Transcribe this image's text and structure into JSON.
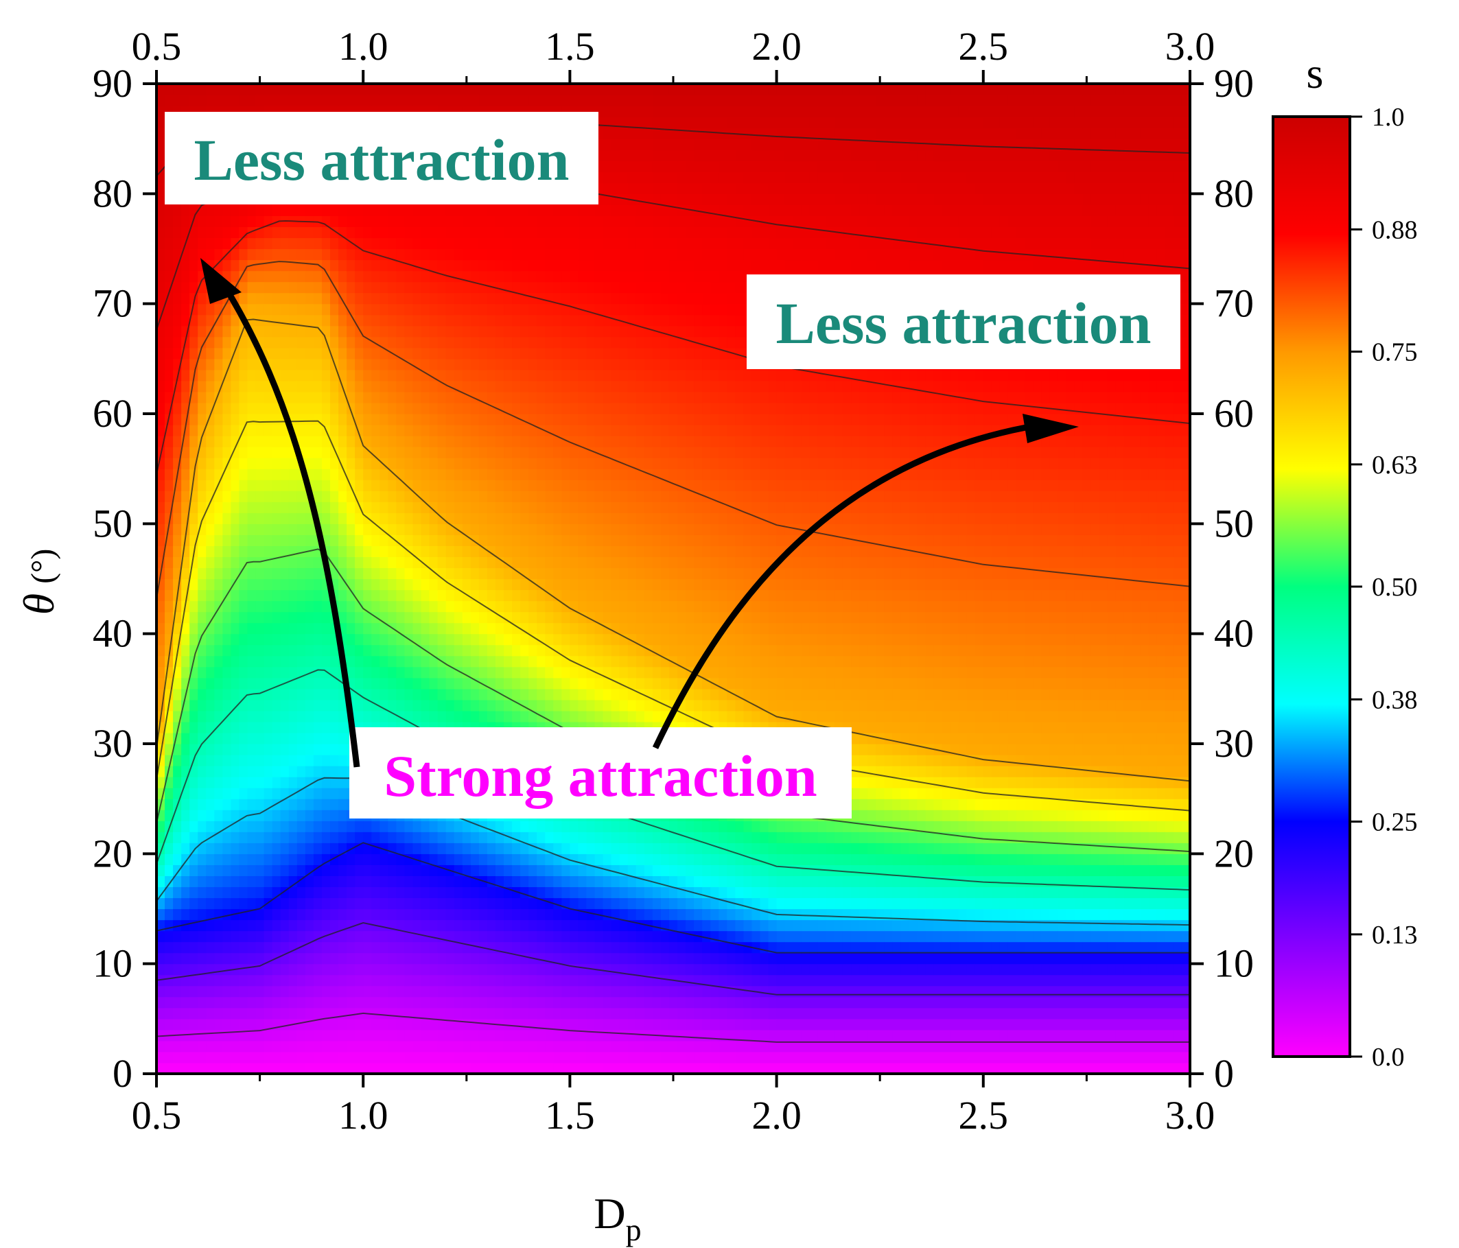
{
  "chart_data": {
    "type": "heatmap",
    "subtype": "filled-contour",
    "title": "",
    "xlabel": "D",
    "xlabel_sub": "p",
    "ylabel_symbol": "θ",
    "ylabel_unit": "(°)",
    "xlim": [
      0.5,
      3.0
    ],
    "ylim": [
      0,
      90
    ],
    "x_ticks": [
      0.5,
      1.0,
      1.5,
      2.0,
      2.5,
      3.0
    ],
    "x_tick_labels": [
      "0.5",
      "1.0",
      "1.5",
      "2.0",
      "2.5",
      "3.0"
    ],
    "y_ticks": [
      0,
      10,
      20,
      30,
      40,
      50,
      60,
      70,
      80,
      90
    ],
    "y_tick_labels": [
      "0",
      "10",
      "20",
      "30",
      "40",
      "50",
      "60",
      "70",
      "80",
      "90"
    ],
    "colorbar": {
      "label": "s",
      "range": [
        0.0,
        1.0
      ],
      "ticks": [
        0.0,
        0.13,
        0.25,
        0.38,
        0.5,
        0.63,
        0.75,
        0.88,
        1.0
      ],
      "tick_labels": [
        "0.0",
        "0.13",
        "0.25",
        "0.38",
        "0.50",
        "0.63",
        "0.75",
        "0.88",
        "1.0"
      ],
      "colormap": [
        "#ff00ff",
        "#8000ff",
        "#0000ff",
        "#00ffff",
        "#00ff80",
        "#ffff00",
        "#ff9900",
        "#ff0000",
        "#cc0000"
      ]
    },
    "x": [
      0.5,
      0.6,
      0.7,
      0.8,
      0.9,
      1.0,
      1.2,
      1.4,
      1.6,
      1.8,
      2.0,
      2.25,
      2.5,
      2.75,
      3.0
    ],
    "y": [
      0,
      5,
      10,
      15,
      20,
      25,
      30,
      35,
      40,
      45,
      50,
      55,
      60,
      65,
      70,
      75,
      80,
      85,
      90
    ],
    "z_description": "s as a function of D_p and theta; minimum band runs along low theta, ridge near D_p = 1.0",
    "contour_levels": [
      0.05,
      0.15,
      0.25,
      0.35,
      0.45,
      0.55,
      0.65,
      0.72,
      0.8,
      0.86,
      0.92,
      0.97
    ],
    "annotations": [
      {
        "id": "less-attraction-left",
        "text": "Less attraction"
      },
      {
        "id": "less-attraction-right",
        "text": "Less attraction"
      },
      {
        "id": "strong-attraction",
        "text": "Strong attraction"
      }
    ],
    "arrows": [
      {
        "from": [
          0.99,
          28
        ],
        "to": [
          0.6,
          74
        ]
      },
      {
        "from": [
          1.7,
          30
        ],
        "to": [
          2.73,
          59
        ]
      }
    ]
  },
  "colors": {
    "less_attraction_text": "#1a8a7a",
    "strong_attraction_text": "#ff00ff",
    "arrow": "#000000",
    "axis": "#000000"
  }
}
